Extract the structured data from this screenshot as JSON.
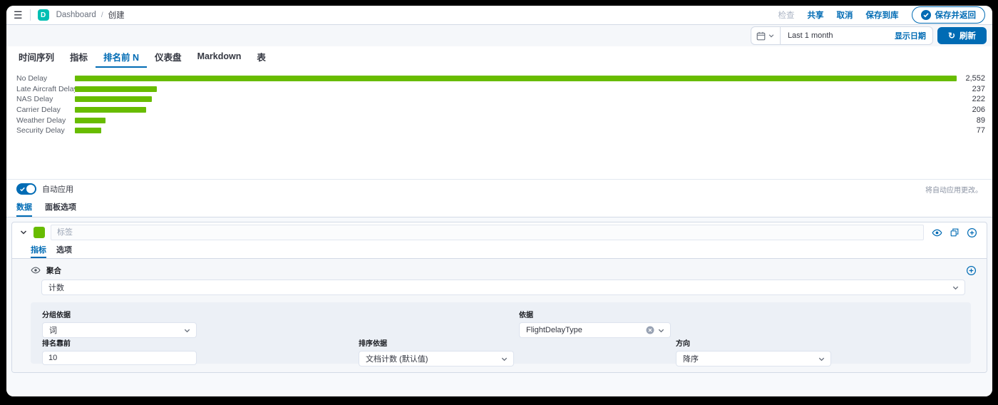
{
  "colors": {
    "accent": "#006bb4",
    "logo_teal": "#00bfb3",
    "bar_green": "#68BC00"
  },
  "icons": {
    "menu": "☰",
    "refresh": "↻"
  },
  "topbar": {
    "logo_letter": "D",
    "breadcrumb": {
      "root": "Dashboard",
      "separator": "/",
      "current": "创建"
    },
    "actions": {
      "inspect": "检查",
      "share": "共享",
      "cancel": "取消",
      "save_to_library": "保存到库",
      "save_and_return": "保存并返回"
    }
  },
  "datebar": {
    "range": "Last 1 month",
    "show_dates": "显示日期",
    "refresh": "刷新"
  },
  "chart_tabs": [
    {
      "label": "时间序列"
    },
    {
      "label": "指标"
    },
    {
      "label": "排名前 N"
    },
    {
      "label": "仪表盘"
    },
    {
      "label": "Markdown"
    },
    {
      "label": "表"
    }
  ],
  "chart_data": {
    "type": "bar",
    "orientation": "horizontal",
    "title": "",
    "categories": [
      "No Delay",
      "Late Aircraft Delay",
      "NAS Delay",
      "Carrier Delay",
      "Weather Delay",
      "Security Delay"
    ],
    "values": [
      2552,
      237,
      222,
      206,
      89,
      77
    ],
    "value_labels": [
      "2,552",
      "237",
      "222",
      "206",
      "89",
      "77"
    ],
    "xlim": [
      0,
      2552
    ],
    "bar_color": "#68BC00",
    "grid": false,
    "legend": "none"
  },
  "apply_bar": {
    "toggle_label": "自动应用",
    "toggle_on": true,
    "hint": "将自动应用更改。"
  },
  "editor_tabs": [
    {
      "label": "数据"
    },
    {
      "label": "面板选项"
    }
  ],
  "series": {
    "color": "#68BC00",
    "label_placeholder": "标签",
    "tabs": [
      {
        "label": "指标"
      },
      {
        "label": "选项"
      }
    ],
    "aggregation": {
      "label": "聚合",
      "value": "计数"
    },
    "group": {
      "group_by_label": "分组依据",
      "group_by_value": "词",
      "by_label": "依据",
      "by_value": "FlightDelayType",
      "top_label": "排名靠前",
      "top_value": "10",
      "order_by_label": "排序依据",
      "order_by_value": "文档计数 (默认值)",
      "direction_label": "方向",
      "direction_value": "降序"
    }
  }
}
